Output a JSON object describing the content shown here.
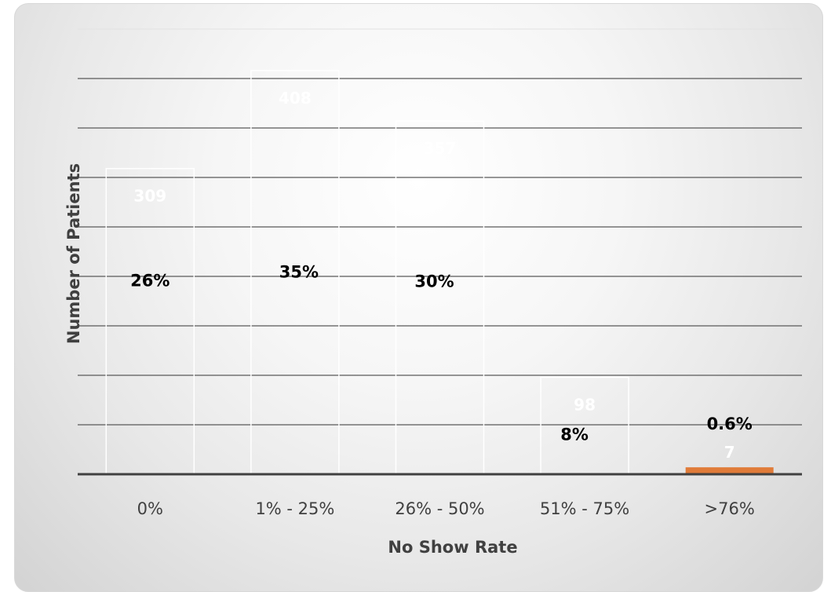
{
  "chart_data": {
    "type": "bar",
    "title": "",
    "xlabel": "No Show Rate",
    "ylabel": "Number of Patients",
    "categories": [
      "0%",
      "1% - 25%",
      "26% - 50%",
      "51% - 75%",
      ">76%"
    ],
    "values": [
      309,
      408,
      357,
      98,
      7
    ],
    "percent_labels": [
      "26%",
      "35%",
      "30%",
      "8%",
      "0.6%"
    ],
    "ylim": [
      0,
      450
    ],
    "grid": true,
    "bar_colors": [
      "transparent",
      "transparent",
      "transparent",
      "transparent",
      "#E07B39"
    ],
    "bar_outline_color": "#ffffff",
    "value_label_color": "#ffffff",
    "percent_label_color": "#000000",
    "axis_text_color": "#404040",
    "gridline_color": "#595959"
  }
}
